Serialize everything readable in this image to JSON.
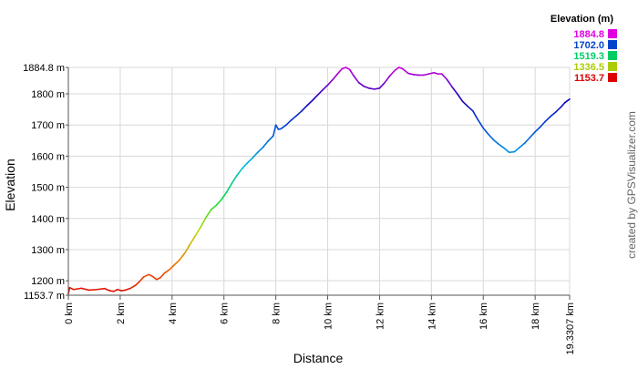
{
  "chart_data": {
    "type": "line",
    "xlabel": "Distance",
    "ylabel": "Elevation",
    "x_unit": "km",
    "y_unit": "m",
    "xlim": [
      0,
      19.3307
    ],
    "ylim": [
      1153.7,
      1884.8
    ],
    "x_ticks": [
      0,
      2,
      4,
      6,
      8,
      10,
      12,
      14,
      16,
      18
    ],
    "x_tick_labels": [
      "0 km",
      "2 km",
      "4 km",
      "6 km",
      "8 km",
      "10 km",
      "12 km",
      "14 km",
      "16 km",
      "18 km",
      "19.3307 km"
    ],
    "y_ticks": [
      1200,
      1300,
      1400,
      1500,
      1600,
      1700,
      1800
    ],
    "y_tick_labels": [
      "1153.7 m",
      "1200 m",
      "1300 m",
      "1400 m",
      "1500 m",
      "1600 m",
      "1700 m",
      "1800 m",
      "1884.8 m"
    ],
    "grid": true,
    "legend": {
      "title": "Elevation (m)",
      "placement": "top-right",
      "entries": [
        {
          "label": "1884.8",
          "value": 1884.8,
          "color": "#e000e0"
        },
        {
          "label": "1702.0",
          "value": 1702.0,
          "color": "#0044cc"
        },
        {
          "label": "1519.3",
          "value": 1519.3,
          "color": "#00cc66"
        },
        {
          "label": "1336.5",
          "value": 1336.5,
          "color": "#aacc00"
        },
        {
          "label": "1153.7",
          "value": 1153.7,
          "color": "#dd0000"
        }
      ]
    },
    "color_scale": [
      "#dd0000",
      "#ee7700",
      "#bbdd00",
      "#00dd44",
      "#00bbdd",
      "#0055dd",
      "#1100bb",
      "#cc00dd"
    ],
    "series": [
      {
        "x": [
          0,
          0.05,
          0.2,
          0.5,
          0.8,
          1.1,
          1.4,
          1.6,
          1.75,
          1.9,
          2.05,
          2.2,
          2.4,
          2.6,
          2.75,
          2.9,
          3.1,
          3.25,
          3.4,
          3.55,
          3.7,
          3.9,
          4.1,
          4.3,
          4.5,
          4.7,
          4.9,
          5.1,
          5.3,
          5.5,
          5.7,
          5.9,
          6.1,
          6.3,
          6.5,
          6.7,
          6.9,
          7.1,
          7.3,
          7.5,
          7.7,
          7.9,
          8.0,
          8.1,
          8.2,
          8.4,
          8.6,
          8.8,
          9.0,
          9.2,
          9.4,
          9.6,
          9.8,
          10.0,
          10.2,
          10.4,
          10.55,
          10.7,
          10.85,
          11.0,
          11.2,
          11.4,
          11.6,
          11.8,
          12.0,
          12.2,
          12.4,
          12.6,
          12.75,
          12.9,
          13.1,
          13.3,
          13.5,
          13.7,
          13.9,
          14.1,
          14.25,
          14.4,
          14.6,
          14.8,
          15.0,
          15.2,
          15.4,
          15.6,
          15.8,
          16.0,
          16.2,
          16.4,
          16.6,
          16.8,
          17.0,
          17.2,
          17.4,
          17.6,
          17.8,
          18.0,
          18.2,
          18.4,
          18.6,
          18.8,
          19.0,
          19.15,
          19.3307
        ],
        "y": [
          1158,
          1178,
          1172,
          1176,
          1170,
          1172,
          1175,
          1168,
          1166,
          1172,
          1168,
          1170,
          1176,
          1186,
          1198,
          1212,
          1220,
          1214,
          1204,
          1210,
          1224,
          1236,
          1252,
          1268,
          1290,
          1318,
          1345,
          1372,
          1402,
          1428,
          1442,
          1460,
          1484,
          1512,
          1538,
          1560,
          1578,
          1594,
          1612,
          1628,
          1648,
          1665,
          1700,
          1686,
          1688,
          1700,
          1716,
          1730,
          1745,
          1762,
          1778,
          1795,
          1812,
          1828,
          1846,
          1866,
          1880,
          1884.8,
          1878,
          1858,
          1836,
          1824,
          1818,
          1815,
          1818,
          1836,
          1858,
          1876,
          1884.8,
          1880,
          1866,
          1862,
          1860,
          1860,
          1864,
          1868,
          1864,
          1864,
          1846,
          1822,
          1800,
          1776,
          1760,
          1745,
          1716,
          1690,
          1670,
          1652,
          1638,
          1626,
          1612,
          1614,
          1628,
          1642,
          1660,
          1678,
          1694,
          1712,
          1728,
          1742,
          1758,
          1772,
          1783
        ]
      }
    ]
  },
  "credit": "created by GPSVisualizer.com"
}
